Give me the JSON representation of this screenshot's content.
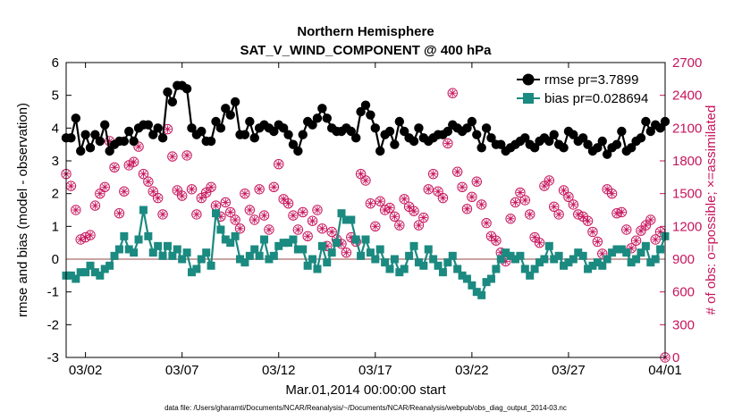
{
  "chart_data": {
    "type": "line",
    "title_line1": "Northern Hemisphere",
    "title_line2": "SAT_V_WIND_COMPONENT @ 400 hPa",
    "xlabel": "Mar.01,2014 00:00:00 start",
    "ylabel_left": "rmse and bias (model - observation)",
    "ylabel_right": "# of obs: o=possible; ×=assimilated",
    "footnote": "data file: /Users/gharamti/Documents/NCAR/Reanalysis/~/Documents/NCAR/Reanalysis/webpub/obs_diag_output_2014-03.nc",
    "xlim": [
      0,
      124
    ],
    "ylim_left": [
      -3,
      6
    ],
    "ylim_right": [
      0,
      2700
    ],
    "x_ticks": [
      {
        "x": 4,
        "label": "03/02"
      },
      {
        "x": 24,
        "label": "03/07"
      },
      {
        "x": 44,
        "label": "03/12"
      },
      {
        "x": 64,
        "label": "03/17"
      },
      {
        "x": 84,
        "label": "03/22"
      },
      {
        "x": 104,
        "label": "03/27"
      },
      {
        "x": 124,
        "label": "04/01"
      }
    ],
    "y_left_ticks": [
      -3,
      -2,
      -1,
      0,
      1,
      2,
      3,
      4,
      5,
      6
    ],
    "y_right_ticks": [
      0,
      300,
      600,
      900,
      1200,
      1500,
      1800,
      2100,
      2400,
      2700
    ],
    "colors": {
      "rmse": "#000000",
      "bias": "#1b8a80",
      "obs": "#c7145c",
      "zero_line": "#c9a3a3"
    },
    "legend": [
      {
        "name": "rmse",
        "label": "rmse pr=3.7899"
      },
      {
        "name": "bias",
        "label": "bias pr=0.028694"
      }
    ],
    "series": [
      {
        "name": "rmse",
        "x_start": 0,
        "x_step": 1,
        "values": [
          3.7,
          3.7,
          4.3,
          3.3,
          3.8,
          3.4,
          3.8,
          3.6,
          4.1,
          3.3,
          3.5,
          3.6,
          3.6,
          3.9,
          3.6,
          4.0,
          4.1,
          4.1,
          3.8,
          4.0,
          3.7,
          5.1,
          4.8,
          5.3,
          5.3,
          5.2,
          4.0,
          3.8,
          3.9,
          3.6,
          3.6,
          4.2,
          4.0,
          4.6,
          4.4,
          4.8,
          3.8,
          3.8,
          4.2,
          3.7,
          4.0,
          4.1,
          4.0,
          3.9,
          4.1,
          4.0,
          3.8,
          3.5,
          3.3,
          3.8,
          4.2,
          4.1,
          4.3,
          4.6,
          4.3,
          4.0,
          3.9,
          3.9,
          4.0,
          3.9,
          3.7,
          4.5,
          4.7,
          4.4,
          4.0,
          3.3,
          3.8,
          3.9,
          3.5,
          4.2,
          3.9,
          3.7,
          3.6,
          4.0,
          3.7,
          3.6,
          3.7,
          3.8,
          3.8,
          3.9,
          4.1,
          4.0,
          3.9,
          4.0,
          4.2,
          3.8,
          3.4,
          4.0,
          3.7,
          3.5,
          3.5,
          3.3,
          3.4,
          3.5,
          3.6,
          3.7,
          3.5,
          3.4,
          3.6,
          3.7,
          3.6,
          3.8,
          3.5,
          3.4,
          3.9,
          3.8,
          3.6,
          3.7,
          3.5,
          3.3,
          3.4,
          3.6,
          3.2,
          3.4,
          3.5,
          3.9,
          3.3,
          3.4,
          3.6,
          3.7,
          4.2,
          3.9,
          4.1,
          4.0,
          4.2
        ]
      },
      {
        "name": "bias",
        "x_start": 0,
        "x_step": 1,
        "values": [
          -0.5,
          -0.5,
          -0.6,
          -0.4,
          -0.4,
          -0.2,
          -0.4,
          -0.5,
          -0.3,
          -0.2,
          0.1,
          0.3,
          0.7,
          0.3,
          0.2,
          0.6,
          1.5,
          0.7,
          0.2,
          0.4,
          0.1,
          0.4,
          0.1,
          0.3,
          0.0,
          0.2,
          -0.4,
          -0.3,
          0.0,
          0.2,
          -0.2,
          1.4,
          0.9,
          0.6,
          0.5,
          0.7,
          0.0,
          -0.1,
          0.1,
          0.3,
          0.1,
          0.6,
          0.0,
          0.1,
          0.4,
          0.5,
          0.5,
          0.6,
          0.3,
          0.3,
          -0.2,
          0.0,
          -0.3,
          0.4,
          -0.1,
          0.2,
          0.5,
          1.4,
          1.2,
          1.2,
          0.6,
          0.1,
          0.6,
          0.2,
          0.0,
          0.3,
          -0.1,
          -0.3,
          0.0,
          -0.4,
          -0.3,
          0.1,
          0.4,
          -0.1,
          -0.2,
          0.3,
          0.0,
          -0.2,
          -0.4,
          -0.1,
          0.1,
          -0.3,
          -0.5,
          -0.6,
          -0.8,
          -1.0,
          -1.1,
          -0.7,
          -0.6,
          -0.3,
          0.0,
          0.2,
          0.1,
          0.0,
          0.1,
          -0.3,
          -0.5,
          -0.3,
          -0.1,
          0.0,
          0.4,
          0.0,
          0.1,
          -0.2,
          -0.1,
          0.0,
          0.2,
          0.1,
          -0.3,
          -0.2,
          -0.1,
          -0.2,
          0.0,
          0.2,
          0.3,
          0.3,
          0.2,
          -0.1,
          0.0,
          0.2,
          0.4,
          -0.1,
          0.0,
          0.3,
          0.7
        ]
      },
      {
        "name": "obs_count",
        "axis": "right",
        "points": [
          [
            0,
            1680
          ],
          [
            1,
            1570
          ],
          [
            2,
            1350
          ],
          [
            3,
            1080
          ],
          [
            4,
            1100
          ],
          [
            5,
            1120
          ],
          [
            6,
            1390
          ],
          [
            7,
            1500
          ],
          [
            8,
            1560
          ],
          [
            9,
            1980
          ],
          [
            10,
            1740
          ],
          [
            11,
            1320
          ],
          [
            12,
            1520
          ],
          [
            13,
            1760
          ],
          [
            14,
            1790
          ],
          [
            15,
            1930
          ],
          [
            16,
            1680
          ],
          [
            17,
            1610
          ],
          [
            18,
            1520
          ],
          [
            19,
            1460
          ],
          [
            20,
            1310
          ],
          [
            21,
            2090
          ],
          [
            22,
            1840
          ],
          [
            23,
            1530
          ],
          [
            24,
            1480
          ],
          [
            25,
            1850
          ],
          [
            26,
            1540
          ],
          [
            27,
            1310
          ],
          [
            28,
            1460
          ],
          [
            29,
            1510
          ],
          [
            30,
            1560
          ],
          [
            31,
            1390
          ],
          [
            32,
            1290
          ],
          [
            33,
            1420
          ],
          [
            34,
            1330
          ],
          [
            35,
            1260
          ],
          [
            36,
            1180
          ],
          [
            37,
            1500
          ],
          [
            38,
            1350
          ],
          [
            39,
            1260
          ],
          [
            40,
            1540
          ],
          [
            41,
            1300
          ],
          [
            42,
            1170
          ],
          [
            43,
            1560
          ],
          [
            44,
            1770
          ],
          [
            45,
            1450
          ],
          [
            46,
            1410
          ],
          [
            47,
            1300
          ],
          [
            48,
            1170
          ],
          [
            49,
            1330
          ],
          [
            50,
            1110
          ],
          [
            51,
            1250
          ],
          [
            52,
            1350
          ],
          [
            53,
            1180
          ],
          [
            54,
            1020
          ],
          [
            55,
            1150
          ],
          [
            56,
            1080
          ],
          [
            57,
            1040
          ],
          [
            58,
            960
          ],
          [
            59,
            1100
          ],
          [
            60,
            1060
          ],
          [
            61,
            1680
          ],
          [
            62,
            1620
          ],
          [
            63,
            1410
          ],
          [
            64,
            1200
          ],
          [
            65,
            1430
          ],
          [
            66,
            1350
          ],
          [
            67,
            1370
          ],
          [
            68,
            1290
          ],
          [
            69,
            1210
          ],
          [
            70,
            1450
          ],
          [
            71,
            1380
          ],
          [
            72,
            1340
          ],
          [
            73,
            1210
          ],
          [
            74,
            1280
          ],
          [
            75,
            1540
          ],
          [
            76,
            1680
          ],
          [
            77,
            1520
          ],
          [
            78,
            1460
          ],
          [
            79,
            1960
          ],
          [
            80,
            2420
          ],
          [
            81,
            1700
          ],
          [
            82,
            1560
          ],
          [
            83,
            1360
          ],
          [
            84,
            1470
          ],
          [
            85,
            1610
          ],
          [
            86,
            1400
          ],
          [
            87,
            1230
          ],
          [
            88,
            1110
          ],
          [
            89,
            1070
          ],
          [
            90,
            960
          ],
          [
            91,
            880
          ],
          [
            92,
            1270
          ],
          [
            93,
            1420
          ],
          [
            94,
            1510
          ],
          [
            95,
            1440
          ],
          [
            96,
            1310
          ],
          [
            97,
            1100
          ],
          [
            98,
            1050
          ],
          [
            99,
            1570
          ],
          [
            100,
            1620
          ],
          [
            101,
            1380
          ],
          [
            102,
            1310
          ],
          [
            103,
            1530
          ],
          [
            104,
            1470
          ],
          [
            105,
            1400
          ],
          [
            106,
            1310
          ],
          [
            107,
            1290
          ],
          [
            108,
            1250
          ],
          [
            109,
            1150
          ],
          [
            110,
            1060
          ],
          [
            111,
            950
          ],
          [
            112,
            1540
          ],
          [
            113,
            1500
          ],
          [
            114,
            1320
          ],
          [
            115,
            1330
          ],
          [
            116,
            1170
          ],
          [
            117,
            1000
          ],
          [
            118,
            1070
          ],
          [
            119,
            1160
          ],
          [
            120,
            1210
          ],
          [
            121,
            1260
          ],
          [
            122,
            1080
          ],
          [
            123,
            1150
          ],
          [
            124,
            0
          ]
        ]
      }
    ]
  }
}
